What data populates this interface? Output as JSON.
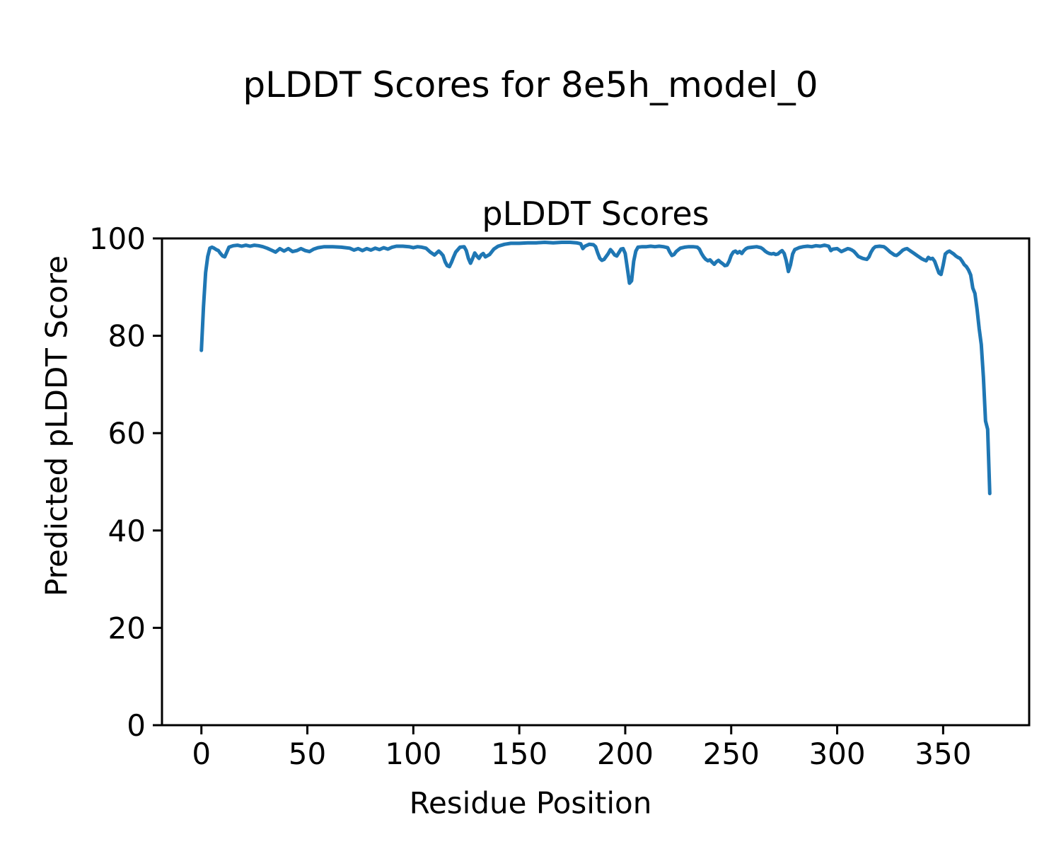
{
  "figure": {
    "suptitle": "pLDDT Scores for 8e5h_model_0",
    "xlabel": "Residue Position",
    "ylabel": "Predicted pLDDT Score"
  },
  "chart_data": {
    "type": "line",
    "title": "pLDDT Scores",
    "xlabel": "Residue Position",
    "ylabel": "Predicted pLDDT Score",
    "xlim": [
      -18.6,
      390.6
    ],
    "ylim": [
      0,
      100
    ],
    "x_ticks": [
      0,
      50,
      100,
      150,
      200,
      250,
      300,
      350
    ],
    "y_ticks": [
      0,
      20,
      40,
      60,
      80,
      100
    ],
    "grid": false,
    "legend": "none",
    "line_color": "#1f77b4",
    "series": [
      {
        "name": "pLDDT",
        "points": [
          [
            0,
            77
          ],
          [
            1,
            86
          ],
          [
            2,
            93
          ],
          [
            3,
            96.3
          ],
          [
            4,
            98.0
          ],
          [
            5,
            98.2
          ],
          [
            6,
            98.0
          ],
          [
            7,
            97.7
          ],
          [
            8,
            97.5
          ],
          [
            9,
            96.9
          ],
          [
            10,
            96.4
          ],
          [
            11,
            96.2
          ],
          [
            12,
            97.2
          ],
          [
            13,
            98.2
          ],
          [
            15,
            98.5
          ],
          [
            17,
            98.6
          ],
          [
            19,
            98.4
          ],
          [
            21,
            98.6
          ],
          [
            23,
            98.4
          ],
          [
            25,
            98.6
          ],
          [
            27,
            98.5
          ],
          [
            29,
            98.3
          ],
          [
            31,
            98.0
          ],
          [
            33,
            97.6
          ],
          [
            35,
            97.2
          ],
          [
            37,
            97.9
          ],
          [
            39,
            97.4
          ],
          [
            41,
            97.9
          ],
          [
            43,
            97.3
          ],
          [
            45,
            97.5
          ],
          [
            47,
            97.9
          ],
          [
            49,
            97.5
          ],
          [
            51,
            97.3
          ],
          [
            53,
            97.8
          ],
          [
            55,
            98.1
          ],
          [
            58,
            98.3
          ],
          [
            62,
            98.3
          ],
          [
            66,
            98.2
          ],
          [
            70,
            98.0
          ],
          [
            72,
            97.6
          ],
          [
            74,
            97.9
          ],
          [
            76,
            97.5
          ],
          [
            78,
            97.9
          ],
          [
            80,
            97.6
          ],
          [
            82,
            98.0
          ],
          [
            84,
            97.7
          ],
          [
            86,
            98.1
          ],
          [
            88,
            97.8
          ],
          [
            90,
            98.2
          ],
          [
            92,
            98.4
          ],
          [
            95,
            98.4
          ],
          [
            98,
            98.3
          ],
          [
            100,
            98.1
          ],
          [
            102,
            98.3
          ],
          [
            104,
            98.2
          ],
          [
            106,
            98.0
          ],
          [
            108,
            97.2
          ],
          [
            110,
            96.6
          ],
          [
            111,
            97.0
          ],
          [
            112,
            97.4
          ],
          [
            113,
            97.0
          ],
          [
            114,
            96.5
          ],
          [
            115,
            95.2
          ],
          [
            116,
            94.4
          ],
          [
            117,
            94.2
          ],
          [
            118,
            95.1
          ],
          [
            119,
            96.2
          ],
          [
            120,
            97.2
          ],
          [
            122,
            98.2
          ],
          [
            124,
            98.3
          ],
          [
            125,
            97.5
          ],
          [
            126,
            95.9
          ],
          [
            127,
            94.9
          ],
          [
            128,
            95.9
          ],
          [
            129,
            97.0
          ],
          [
            130,
            96.4
          ],
          [
            131,
            95.9
          ],
          [
            132,
            96.6
          ],
          [
            133,
            96.9
          ],
          [
            134,
            96.2
          ],
          [
            136,
            96.7
          ],
          [
            138,
            97.8
          ],
          [
            140,
            98.4
          ],
          [
            143,
            98.8
          ],
          [
            146,
            99.0
          ],
          [
            150,
            99.0
          ],
          [
            154,
            99.1
          ],
          [
            158,
            99.1
          ],
          [
            162,
            99.2
          ],
          [
            166,
            99.1
          ],
          [
            170,
            99.2
          ],
          [
            174,
            99.2
          ],
          [
            177,
            99.1
          ],
          [
            179,
            98.9
          ],
          [
            180,
            97.9
          ],
          [
            181,
            98.4
          ],
          [
            183,
            98.8
          ],
          [
            185,
            98.7
          ],
          [
            186,
            98.3
          ],
          [
            187,
            97.0
          ],
          [
            188,
            95.9
          ],
          [
            189,
            95.5
          ],
          [
            190,
            95.7
          ],
          [
            191,
            96.3
          ],
          [
            192,
            96.9
          ],
          [
            193,
            97.7
          ],
          [
            194,
            97.2
          ],
          [
            195,
            96.6
          ],
          [
            196,
            96.4
          ],
          [
            197,
            97.1
          ],
          [
            198,
            97.8
          ],
          [
            199,
            97.9
          ],
          [
            200,
            96.9
          ],
          [
            201,
            93.9
          ],
          [
            202,
            90.8
          ],
          [
            203,
            91.3
          ],
          [
            204,
            95.3
          ],
          [
            205,
            97.4
          ],
          [
            206,
            98.2
          ],
          [
            208,
            98.3
          ],
          [
            210,
            98.3
          ],
          [
            212,
            98.4
          ],
          [
            214,
            98.3
          ],
          [
            216,
            98.4
          ],
          [
            218,
            98.3
          ],
          [
            220,
            98.1
          ],
          [
            221,
            97.2
          ],
          [
            222,
            96.5
          ],
          [
            223,
            96.7
          ],
          [
            224,
            97.3
          ],
          [
            226,
            98.0
          ],
          [
            228,
            98.2
          ],
          [
            230,
            98.3
          ],
          [
            232,
            98.3
          ],
          [
            234,
            98.2
          ],
          [
            235,
            97.8
          ],
          [
            236,
            96.9
          ],
          [
            237,
            96.2
          ],
          [
            238,
            95.7
          ],
          [
            239,
            95.4
          ],
          [
            240,
            95.6
          ],
          [
            241,
            95.1
          ],
          [
            242,
            94.7
          ],
          [
            243,
            95.2
          ],
          [
            244,
            95.5
          ],
          [
            245,
            95.1
          ],
          [
            246,
            94.8
          ],
          [
            247,
            94.4
          ],
          [
            248,
            94.5
          ],
          [
            249,
            95.3
          ],
          [
            250,
            96.5
          ],
          [
            251,
            97.2
          ],
          [
            252,
            97.4
          ],
          [
            253,
            97.0
          ],
          [
            254,
            97.3
          ],
          [
            255,
            96.9
          ],
          [
            256,
            97.5
          ],
          [
            257,
            97.9
          ],
          [
            258,
            98.1
          ],
          [
            260,
            98.2
          ],
          [
            262,
            98.3
          ],
          [
            264,
            98.1
          ],
          [
            265,
            97.8
          ],
          [
            266,
            97.4
          ],
          [
            267,
            97.1
          ],
          [
            268,
            96.9
          ],
          [
            269,
            96.8
          ],
          [
            270,
            96.9
          ],
          [
            271,
            96.7
          ],
          [
            272,
            96.8
          ],
          [
            273,
            97.2
          ],
          [
            274,
            97.5
          ],
          [
            275,
            96.9
          ],
          [
            276,
            95.4
          ],
          [
            277,
            93.2
          ],
          [
            278,
            94.6
          ],
          [
            279,
            96.8
          ],
          [
            280,
            97.7
          ],
          [
            282,
            98.1
          ],
          [
            284,
            98.3
          ],
          [
            286,
            98.4
          ],
          [
            288,
            98.3
          ],
          [
            290,
            98.5
          ],
          [
            292,
            98.4
          ],
          [
            294,
            98.6
          ],
          [
            296,
            98.4
          ],
          [
            297,
            97.5
          ],
          [
            298,
            97.8
          ],
          [
            300,
            97.9
          ],
          [
            301,
            97.6
          ],
          [
            302,
            97.3
          ],
          [
            303,
            97.5
          ],
          [
            304,
            97.7
          ],
          [
            305,
            97.9
          ],
          [
            306,
            97.8
          ],
          [
            307,
            97.6
          ],
          [
            308,
            97.3
          ],
          [
            309,
            96.8
          ],
          [
            310,
            96.3
          ],
          [
            311,
            96.1
          ],
          [
            312,
            95.9
          ],
          [
            313,
            95.8
          ],
          [
            314,
            95.7
          ],
          [
            315,
            96.2
          ],
          [
            316,
            97.2
          ],
          [
            317,
            97.9
          ],
          [
            318,
            98.3
          ],
          [
            320,
            98.4
          ],
          [
            322,
            98.3
          ],
          [
            323,
            98.0
          ],
          [
            324,
            97.6
          ],
          [
            325,
            97.2
          ],
          [
            326,
            96.9
          ],
          [
            327,
            96.6
          ],
          [
            328,
            96.5
          ],
          [
            329,
            96.8
          ],
          [
            330,
            97.2
          ],
          [
            331,
            97.6
          ],
          [
            332,
            97.8
          ],
          [
            333,
            97.9
          ],
          [
            334,
            97.6
          ],
          [
            335,
            97.3
          ],
          [
            336,
            97.0
          ],
          [
            337,
            96.7
          ],
          [
            338,
            96.4
          ],
          [
            339,
            96.1
          ],
          [
            340,
            95.8
          ],
          [
            341,
            95.6
          ],
          [
            342,
            95.4
          ],
          [
            343,
            96.1
          ],
          [
            344,
            95.8
          ],
          [
            345,
            95.9
          ],
          [
            346,
            95.3
          ],
          [
            347,
            94.1
          ],
          [
            348,
            92.9
          ],
          [
            349,
            92.6
          ],
          [
            350,
            94.5
          ],
          [
            351,
            96.8
          ],
          [
            352,
            97.2
          ],
          [
            353,
            97.4
          ],
          [
            354,
            97.1
          ],
          [
            355,
            96.8
          ],
          [
            356,
            96.4
          ],
          [
            357,
            96.1
          ],
          [
            358,
            95.9
          ],
          [
            359,
            95.3
          ],
          [
            360,
            94.6
          ],
          [
            361,
            94.2
          ],
          [
            362,
            93.5
          ],
          [
            363,
            92.5
          ],
          [
            364,
            89.8
          ],
          [
            365,
            88.7
          ],
          [
            366,
            85.5
          ],
          [
            367,
            81.5
          ],
          [
            368,
            78.2
          ],
          [
            369,
            71.5
          ],
          [
            370,
            62.5
          ],
          [
            371,
            60.8
          ],
          [
            372,
            47.6
          ]
        ]
      }
    ]
  }
}
